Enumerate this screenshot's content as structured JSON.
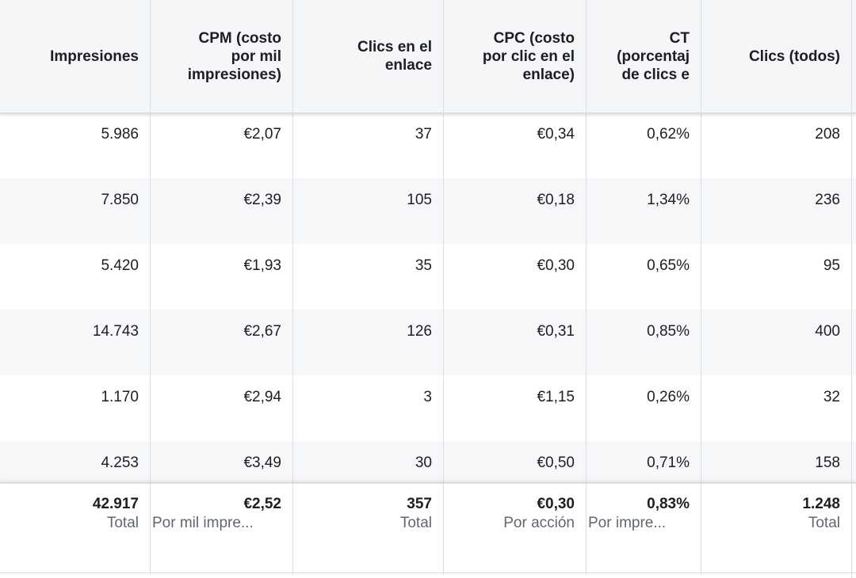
{
  "table": {
    "columns": [
      {
        "key": "impresiones",
        "lines": [
          "Impresiones"
        ]
      },
      {
        "key": "cpm",
        "lines": [
          "CPM (costo",
          "por mil",
          "impresiones)"
        ]
      },
      {
        "key": "clics_enlace",
        "lines": [
          "Clics en el",
          "enlace"
        ]
      },
      {
        "key": "cpc",
        "lines": [
          "CPC (costo",
          "por clic en el",
          "enlace)"
        ]
      },
      {
        "key": "ctr",
        "lines": [
          "CT",
          "(porcentaj",
          "de clics e"
        ]
      },
      {
        "key": "clics_todos",
        "lines": [
          "Clics (todos)"
        ]
      }
    ],
    "rows": [
      [
        "5.986",
        "€2,07",
        "37",
        "€0,34",
        "0,62%",
        "208"
      ],
      [
        "7.850",
        "€2,39",
        "105",
        "€0,18",
        "1,34%",
        "236"
      ],
      [
        "5.420",
        "€1,93",
        "35",
        "€0,30",
        "0,65%",
        "95"
      ],
      [
        "14.743",
        "€2,67",
        "126",
        "€0,31",
        "0,85%",
        "400"
      ],
      [
        "1.170",
        "€2,94",
        "3",
        "€1,15",
        "0,26%",
        "32"
      ],
      [
        "4.253",
        "€3,49",
        "30",
        "€0,50",
        "0,71%",
        "158"
      ]
    ],
    "totals": [
      {
        "value": "42.917",
        "label": "Total"
      },
      {
        "value": "€2,52",
        "label": "Por mil impre..."
      },
      {
        "value": "357",
        "label": "Total"
      },
      {
        "value": "€0,30",
        "label": "Por acción"
      },
      {
        "value": "0,83%",
        "label": "Por impre..."
      },
      {
        "value": "1.248",
        "label": "Total"
      }
    ]
  }
}
